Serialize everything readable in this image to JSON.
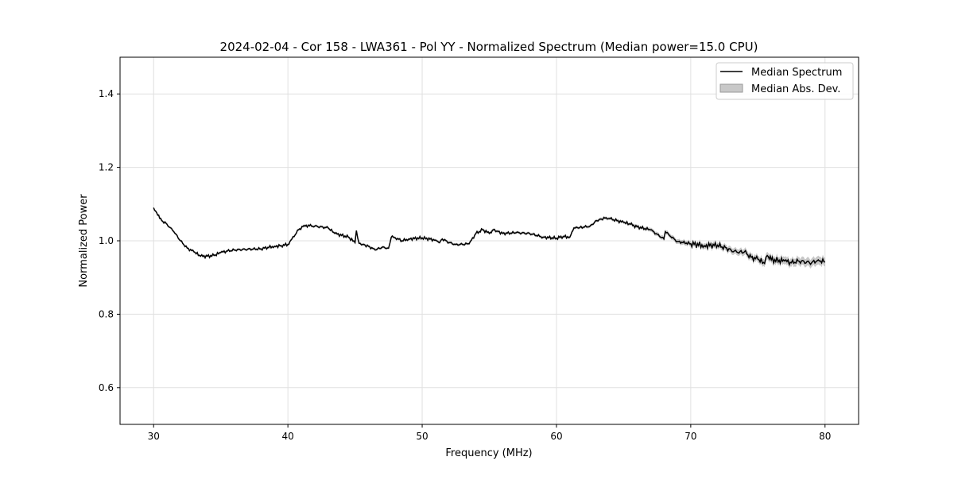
{
  "chart_data": {
    "type": "line",
    "title": "2024-02-04 - Cor 158 - LWA361 - Pol YY - Normalized Spectrum (Median power=15.0 CPU)",
    "xlabel": "Frequency (MHz)",
    "ylabel": "Normalized Power",
    "xlim": [
      27.5,
      82.5
    ],
    "ylim": [
      0.5,
      1.5
    ],
    "xticks": [
      30,
      40,
      50,
      60,
      70,
      80
    ],
    "yticks": [
      0.6,
      0.8,
      1.0,
      1.2,
      1.4
    ],
    "ytick_labels": [
      "0.6",
      "0.8",
      "1.0",
      "1.2",
      "1.4"
    ],
    "grid": true,
    "legend_position": "top-right",
    "legend": [
      "Median Spectrum",
      "Median Abs. Dev."
    ],
    "colors": {
      "line": "#000000",
      "band": "#b0b0b0"
    },
    "series": [
      {
        "name": "Median Spectrum",
        "x": [
          30,
          30.3,
          30.6,
          31,
          31.5,
          32,
          32.5,
          33,
          33.5,
          34,
          34.5,
          35,
          35.5,
          36,
          37,
          38,
          38.5,
          39,
          39.5,
          40,
          40.3,
          40.8,
          41.2,
          42,
          43,
          43.5,
          44.5,
          45,
          45.1,
          45.3,
          46,
          46.5,
          47,
          47.5,
          47.7,
          48,
          48.5,
          49,
          50,
          51,
          51.3,
          51.5,
          52,
          52.5,
          53,
          53.5,
          54,
          54.5,
          55,
          55.3,
          56,
          57,
          58,
          59,
          60,
          60.5,
          61,
          61.3,
          62,
          62.5,
          63,
          63.7,
          64,
          65,
          65.5,
          66,
          67,
          68,
          68.1,
          68.5,
          69,
          70,
          71,
          72,
          73,
          73.5,
          74,
          74.5,
          75,
          75.5,
          75.7,
          76,
          77,
          77.5,
          78,
          79,
          79.5,
          80
        ],
        "y": [
          1.09,
          1.07,
          1.055,
          1.045,
          1.025,
          1.0,
          0.98,
          0.97,
          0.958,
          0.958,
          0.96,
          0.968,
          0.972,
          0.975,
          0.977,
          0.978,
          0.982,
          0.985,
          0.987,
          0.99,
          1.005,
          1.03,
          1.042,
          1.04,
          1.035,
          1.02,
          1.01,
          0.995,
          1.028,
          0.993,
          0.985,
          0.975,
          0.982,
          0.98,
          1.01,
          1.008,
          1.0,
          1.005,
          1.008,
          1.002,
          0.995,
          1.005,
          0.995,
          0.99,
          0.99,
          0.992,
          1.02,
          1.03,
          1.02,
          1.03,
          1.02,
          1.022,
          1.02,
          1.01,
          1.007,
          1.012,
          1.01,
          1.035,
          1.037,
          1.04,
          1.055,
          1.063,
          1.06,
          1.05,
          1.045,
          1.038,
          1.03,
          1.005,
          1.025,
          1.012,
          0.998,
          0.992,
          0.987,
          0.988,
          0.975,
          0.968,
          0.97,
          0.955,
          0.95,
          0.938,
          0.96,
          0.948,
          0.945,
          0.94,
          0.945,
          0.94,
          0.948,
          0.942
        ]
      }
    ],
    "mad_band": {
      "name": "Median Abs. Dev.",
      "x": [
        30,
        65,
        70,
        80
      ],
      "y": [
        0.003,
        0.004,
        0.007,
        0.012
      ]
    }
  }
}
